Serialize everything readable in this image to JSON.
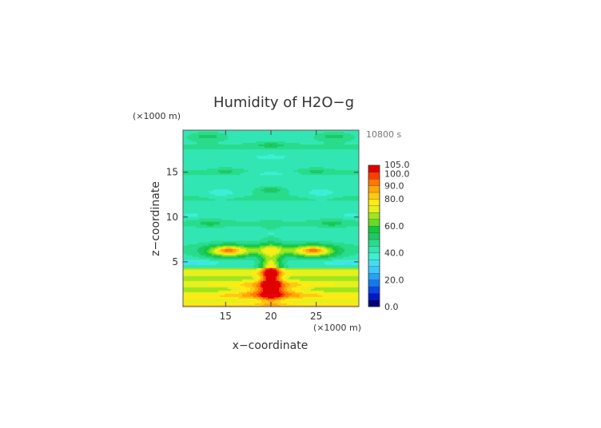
{
  "chart_data": {
    "type": "heatmap",
    "title": "Humidity of H2O−g",
    "time_label": "10800 s",
    "xlabel": "x−coordinate",
    "ylabel": "z−coordinate",
    "x_unit": "(×1000 m)",
    "y_unit": "(×1000 m)",
    "xlim": [
      10.3,
      29.7
    ],
    "ylim": [
      0,
      19.7
    ],
    "x_ticks": [
      "15",
      "20",
      "25"
    ],
    "y_ticks": [
      "5",
      "10",
      "15"
    ],
    "x_tick_values": [
      15,
      20,
      25
    ],
    "y_tick_values": [
      5,
      10,
      15
    ],
    "colorbar": {
      "levels": [
        0,
        5,
        10,
        15,
        20,
        25,
        30,
        35,
        40,
        45,
        50,
        55,
        60,
        65,
        70,
        75,
        80,
        85,
        90,
        95,
        100,
        105
      ],
      "labels": [
        "0.0",
        "20.0",
        "40.0",
        "60.0",
        "80.0",
        "90.0",
        "100.0",
        "105.0"
      ],
      "label_values": [
        0,
        20,
        40,
        60,
        80,
        90,
        100,
        105
      ],
      "colors": [
        "#00007a",
        "#0019c8",
        "#0a46e6",
        "#1478f0",
        "#28a0f5",
        "#3cc8fa",
        "#46dcf0",
        "#3cf0d2",
        "#32e6b4",
        "#28dc8c",
        "#1ec864",
        "#14c83c",
        "#64dc28",
        "#a0e61e",
        "#e6f01e",
        "#ffeb14",
        "#ffc814",
        "#ffa50a",
        "#ff7800",
        "#ff3c00",
        "#e10000",
        "#ffffff"
      ]
    },
    "field_description": "humidity field: ~45 background aloft, ~40 bands/blobs, ~55 ellipses, 70-100 near surface and at ~6 km"
  }
}
